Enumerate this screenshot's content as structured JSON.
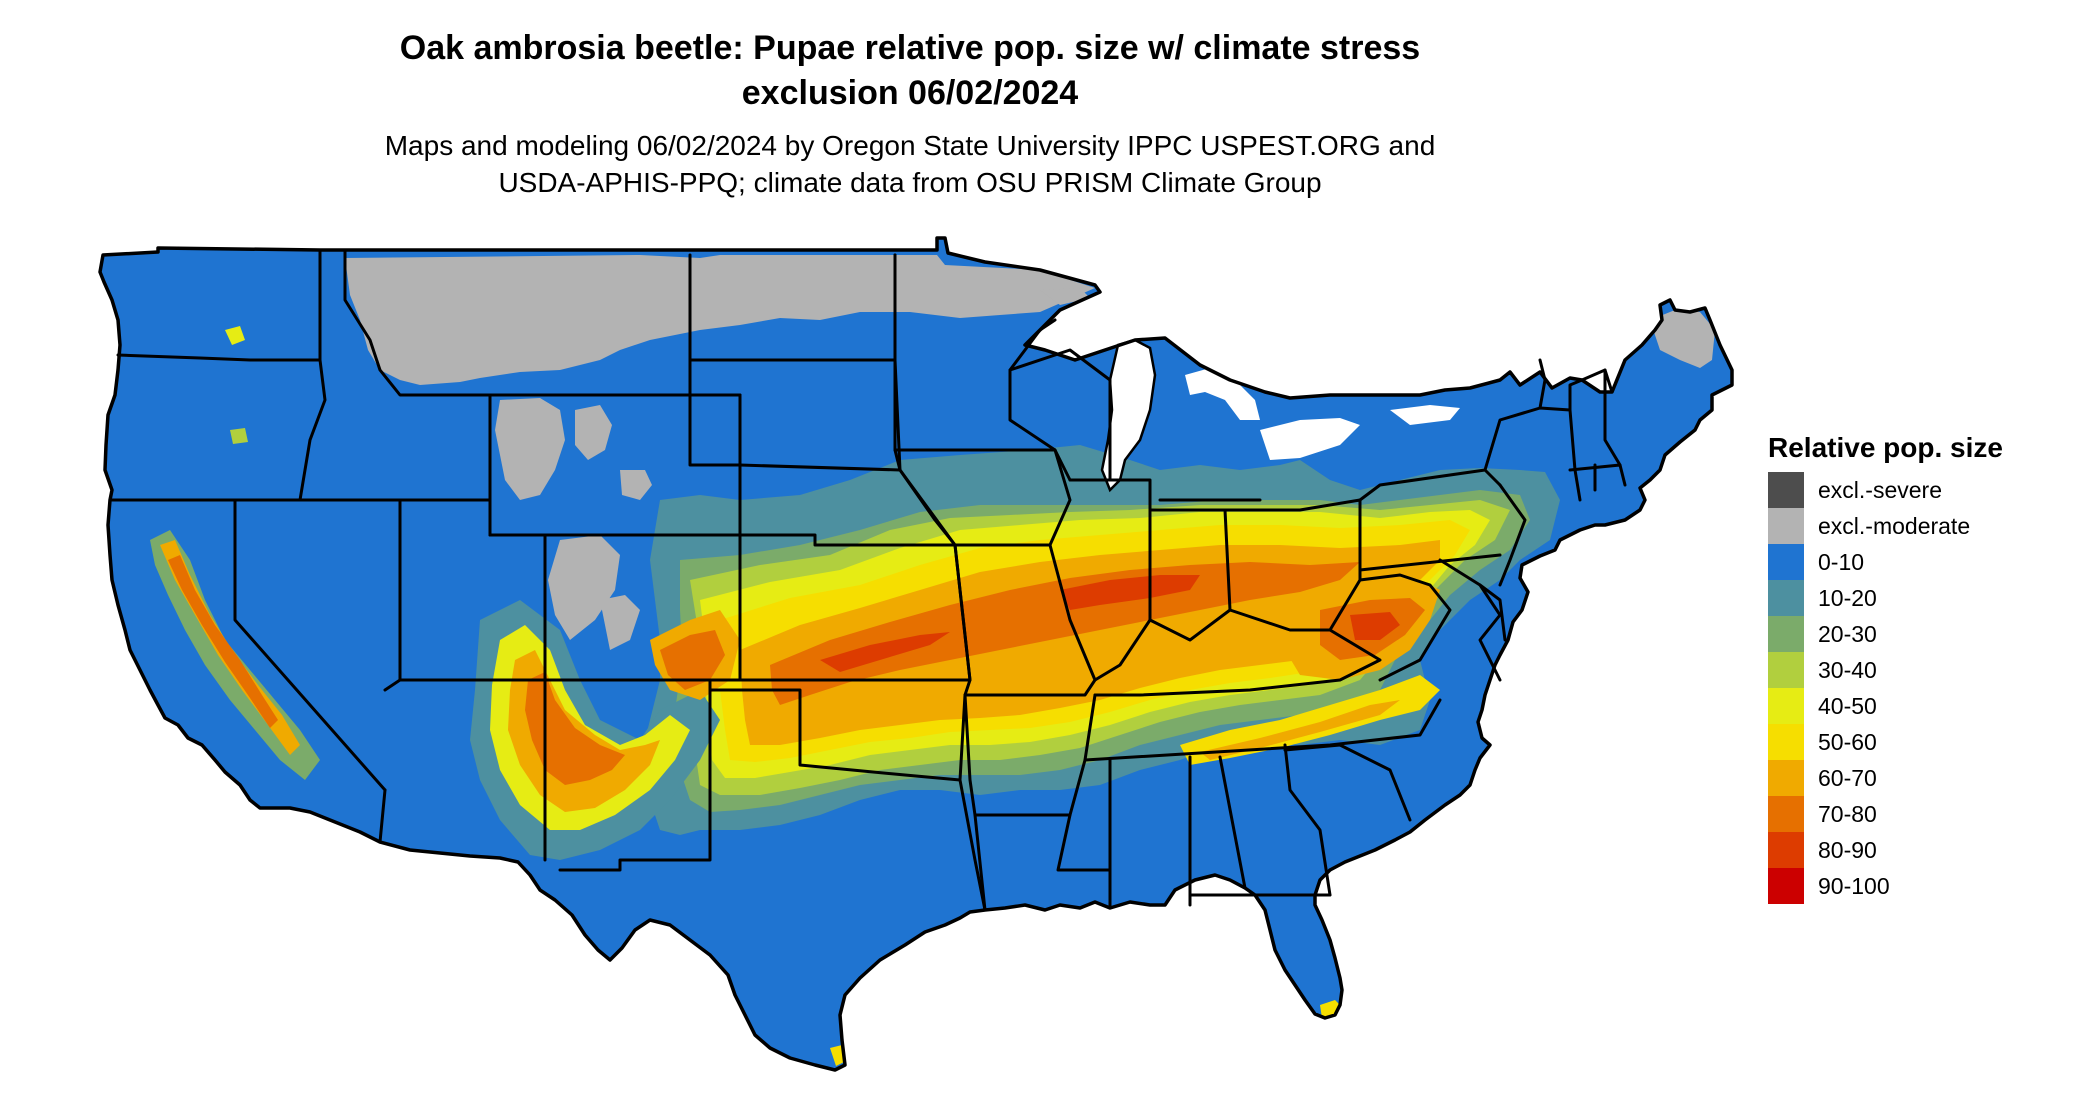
{
  "title": {
    "line1": "Oak ambrosia beetle: Pupae relative pop. size w/ climate stress",
    "line2": "exclusion 06/02/2024"
  },
  "subtitle": {
    "line1": "Maps and modeling 06/02/2024 by Oregon State University IPPC USPEST.ORG and",
    "line2": "USDA-APHIS-PPQ; climate data from OSU PRISM Climate Group"
  },
  "legend": {
    "title": "Relative pop. size",
    "items": [
      {
        "label": "excl.-severe",
        "color": "#4d4d4d"
      },
      {
        "label": "excl.-moderate",
        "color": "#b3b3b3"
      },
      {
        "label": "0-10",
        "color": "#1f74d1"
      },
      {
        "label": "10-20",
        "color": "#4d90a0"
      },
      {
        "label": "20-30",
        "color": "#7bab6a"
      },
      {
        "label": "30-40",
        "color": "#b1cf3e"
      },
      {
        "label": "40-50",
        "color": "#e6ec14"
      },
      {
        "label": "50-60",
        "color": "#f6de00"
      },
      {
        "label": "60-70",
        "color": "#f0aa00"
      },
      {
        "label": "70-80",
        "color": "#e67000"
      },
      {
        "label": "80-90",
        "color": "#dd3c00"
      },
      {
        "label": "90-100",
        "color": "#cc0000"
      }
    ]
  },
  "map": {
    "base_color": "#1f74d1",
    "border_color": "#000000"
  }
}
